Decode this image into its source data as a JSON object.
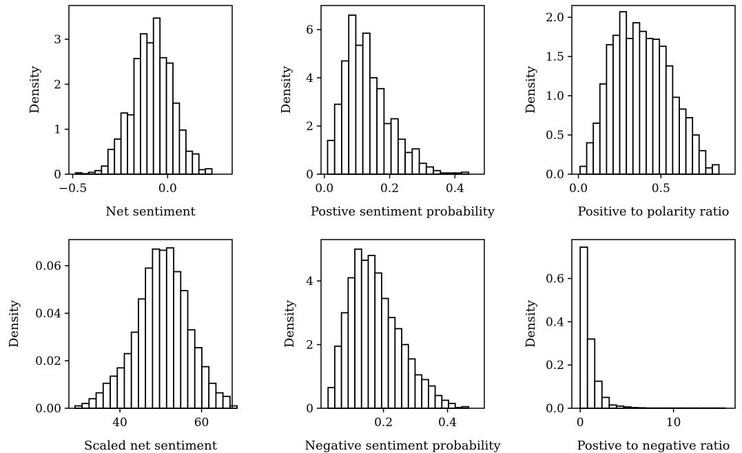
{
  "chart_data": [
    {
      "type": "histogram",
      "xlabel": "Net sentiment",
      "ylabel": "Density",
      "xlim": [
        -0.52,
        0.34
      ],
      "ylim": [
        0,
        3.75
      ],
      "xticks": [
        -0.5,
        0.0
      ],
      "xtick_labels": [
        "−0.5",
        "0.0"
      ],
      "yticks": [
        0,
        1,
        2,
        3
      ],
      "ytick_labels": [
        "0",
        "1",
        "2",
        "3"
      ],
      "bin_start": -0.485,
      "bin_width": 0.0342,
      "values": [
        0.03,
        0.01,
        0.04,
        0.08,
        0.18,
        0.55,
        0.78,
        1.36,
        1.32,
        2.57,
        3.12,
        2.92,
        3.47,
        2.59,
        2.47,
        1.58,
        0.98,
        0.51,
        0.45,
        0.1,
        0.12
      ]
    },
    {
      "type": "histogram",
      "xlabel": "Postive sentiment probability",
      "ylabel": "Density",
      "xlim": [
        -0.01,
        0.49
      ],
      "ylim": [
        0,
        7.0
      ],
      "xticks": [
        0.0,
        0.2,
        0.4
      ],
      "xtick_labels": [
        "0.0",
        "0.2",
        "0.4"
      ],
      "yticks": [
        0,
        2,
        4,
        6
      ],
      "ytick_labels": [
        "0",
        "2",
        "4",
        "6"
      ],
      "bin_start": 0.01,
      "bin_width": 0.0216,
      "values": [
        1.4,
        2.9,
        4.7,
        6.6,
        5.35,
        5.85,
        4.0,
        3.55,
        2.1,
        2.3,
        1.45,
        0.9,
        1.05,
        0.45,
        0.3,
        0.15,
        0.05,
        0.05,
        0.05,
        0.08
      ]
    },
    {
      "type": "histogram",
      "xlabel": "Positive to polarity ratio",
      "ylabel": "Density",
      "xlim": [
        -0.04,
        0.95
      ],
      "ylim": [
        0,
        2.15
      ],
      "xticks": [
        0.0,
        0.5
      ],
      "xtick_labels": [
        "0.0",
        "0.5"
      ],
      "yticks": [
        0.0,
        0.5,
        1.0,
        1.5,
        2.0
      ],
      "ytick_labels": [
        "0.0",
        "0.5",
        "1.0",
        "1.5",
        "2.0"
      ],
      "bin_start": 0.01,
      "bin_width": 0.0401,
      "values": [
        0.1,
        0.4,
        0.65,
        1.15,
        1.65,
        1.77,
        2.07,
        1.73,
        1.93,
        1.82,
        1.73,
        1.72,
        1.63,
        1.38,
        0.98,
        0.83,
        0.72,
        0.5,
        0.3,
        0.08,
        0.12
      ]
    },
    {
      "type": "histogram",
      "xlabel": "Scaled net sentiment",
      "ylabel": "Density",
      "xlim": [
        27.5,
        67.5
      ],
      "ylim": [
        0,
        0.071
      ],
      "xticks": [
        40,
        60
      ],
      "xtick_labels": [
        "40",
        "60"
      ],
      "yticks": [
        0.0,
        0.02,
        0.04,
        0.06
      ],
      "ytick_labels": [
        "0.00",
        "0.02",
        "0.04",
        "0.06"
      ],
      "bin_start": 29.0,
      "bin_width": 1.726,
      "values": [
        0.001,
        0.002,
        0.004,
        0.0065,
        0.0105,
        0.0135,
        0.017,
        0.023,
        0.032,
        0.046,
        0.059,
        0.067,
        0.0665,
        0.0675,
        0.0575,
        0.0495,
        0.033,
        0.0255,
        0.0175,
        0.0105,
        0.0065,
        0.005,
        0.001
      ]
    },
    {
      "type": "histogram",
      "xlabel": "Negative sentiment probability",
      "ylabel": "Density",
      "xlim": [
        0.005,
        0.515
      ],
      "ylim": [
        0,
        5.3
      ],
      "xticks": [
        0.2,
        0.4
      ],
      "xtick_labels": [
        "0.2",
        "0.4"
      ],
      "yticks": [
        0,
        2,
        4
      ],
      "ytick_labels": [
        "0",
        "2",
        "4"
      ],
      "bin_start": 0.027,
      "bin_width": 0.0209,
      "values": [
        0.65,
        1.95,
        3.0,
        4.1,
        5.0,
        4.65,
        4.8,
        4.25,
        3.45,
        2.85,
        2.5,
        2.0,
        1.55,
        1.05,
        0.9,
        0.7,
        0.4,
        0.25,
        0.15,
        0.02,
        0.05
      ]
    },
    {
      "type": "histogram",
      "xlabel": "Postive to negative ratio",
      "ylabel": "Density",
      "xlim": [
        -0.9,
        16.6
      ],
      "ylim": [
        0,
        0.78
      ],
      "xticks": [
        0,
        10
      ],
      "xtick_labels": [
        "0",
        "10"
      ],
      "yticks": [
        0.0,
        0.2,
        0.4,
        0.6
      ],
      "ytick_labels": [
        "0.0",
        "0.2",
        "0.4",
        "0.6"
      ],
      "bin_start": 0.0,
      "bin_width": 0.777,
      "values": [
        0.745,
        0.32,
        0.125,
        0.05,
        0.015,
        0.01,
        0.006,
        0.003,
        0.002,
        0.001,
        0.001,
        0.001,
        0.001,
        0.001,
        0.001,
        0.001,
        0.001,
        0.001,
        0.001,
        0.001
      ]
    }
  ]
}
